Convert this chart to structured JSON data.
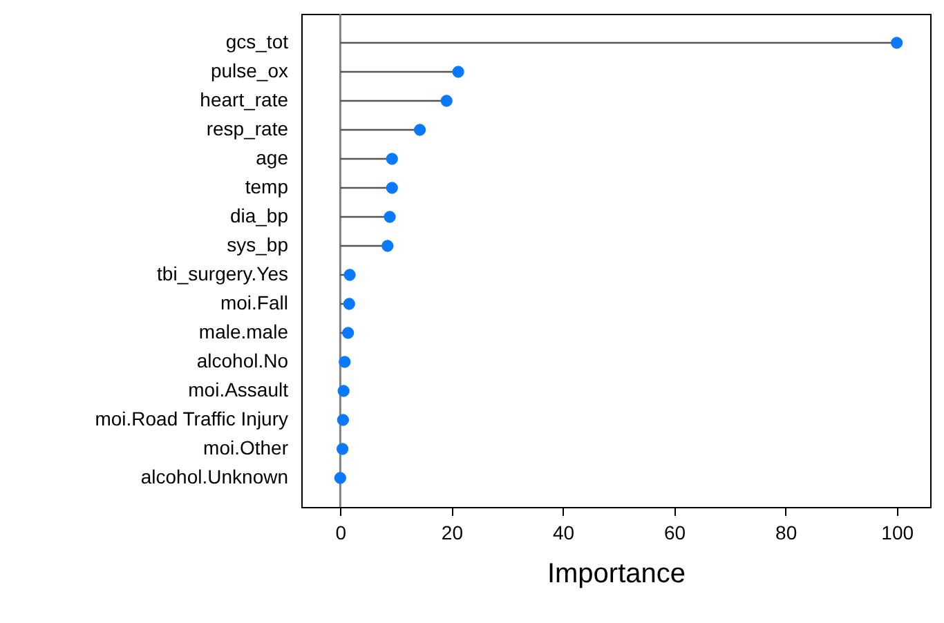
{
  "chart_data": {
    "type": "lollipop",
    "orientation": "horizontal",
    "xlabel": "Importance",
    "categories": [
      "gcs_tot",
      "pulse_ox",
      "heart_rate",
      "resp_rate",
      "age",
      "temp",
      "dia_bp",
      "sys_bp",
      "tbi_surgery.Yes",
      "moi.Fall",
      "male.male",
      "alcohol.No",
      "moi.Assault",
      "moi.Road Traffic Injury",
      "moi.Other",
      "alcohol.Unknown"
    ],
    "values": [
      100,
      21.2,
      19.1,
      14.3,
      9.3,
      9.3,
      8.9,
      8.5,
      1.7,
      1.6,
      1.4,
      0.8,
      0.6,
      0.5,
      0.4,
      0
    ],
    "color": "#0a78ff",
    "xlim": [
      -7,
      106
    ],
    "xticks": [
      0,
      20,
      40,
      60,
      80,
      100
    ],
    "ref_lines": [
      {
        "axis": "x",
        "value": 0,
        "color": "#808080"
      }
    ],
    "grid": false,
    "marker": "circle"
  }
}
